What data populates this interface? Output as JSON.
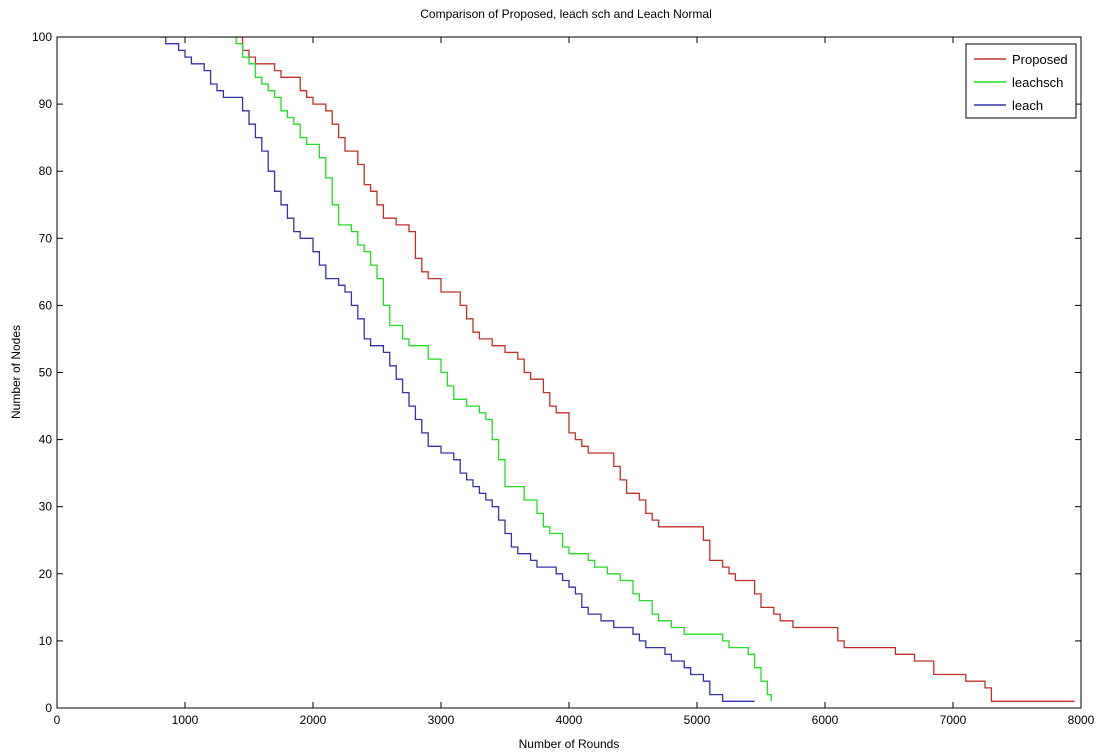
{
  "chart_data": {
    "type": "line",
    "title": "Comparison of Proposed, leach sch and Leach Normal",
    "xlabel": "Number of Rounds",
    "ylabel": "Number of Nodes",
    "xlim": [
      0,
      8000
    ],
    "ylim": [
      0,
      100
    ],
    "xticks": [
      0,
      1000,
      2000,
      3000,
      4000,
      5000,
      6000,
      7000,
      8000
    ],
    "yticks": [
      0,
      10,
      20,
      30,
      40,
      50,
      60,
      70,
      80,
      90,
      100
    ],
    "grid": false,
    "legend_position": "top-right",
    "series": [
      {
        "name": "Proposed",
        "color": "#c0302a",
        "step": true,
        "points": [
          [
            1400,
            100
          ],
          [
            1450,
            98
          ],
          [
            1500,
            97
          ],
          [
            1550,
            96
          ],
          [
            1700,
            95
          ],
          [
            1750,
            94
          ],
          [
            1900,
            92
          ],
          [
            1950,
            91
          ],
          [
            2000,
            90
          ],
          [
            2100,
            89
          ],
          [
            2150,
            87
          ],
          [
            2200,
            85
          ],
          [
            2250,
            83
          ],
          [
            2350,
            81
          ],
          [
            2400,
            78
          ],
          [
            2450,
            77
          ],
          [
            2500,
            75
          ],
          [
            2550,
            73
          ],
          [
            2650,
            72
          ],
          [
            2750,
            71
          ],
          [
            2800,
            67
          ],
          [
            2850,
            65
          ],
          [
            2900,
            64
          ],
          [
            3000,
            62
          ],
          [
            3150,
            60
          ],
          [
            3200,
            58
          ],
          [
            3250,
            56
          ],
          [
            3300,
            55
          ],
          [
            3400,
            54
          ],
          [
            3500,
            53
          ],
          [
            3600,
            52
          ],
          [
            3650,
            50
          ],
          [
            3700,
            49
          ],
          [
            3800,
            47
          ],
          [
            3850,
            45
          ],
          [
            3900,
            44
          ],
          [
            4000,
            41
          ],
          [
            4050,
            40
          ],
          [
            4100,
            39
          ],
          [
            4150,
            38
          ],
          [
            4350,
            36
          ],
          [
            4400,
            34
          ],
          [
            4450,
            32
          ],
          [
            4550,
            31
          ],
          [
            4600,
            29
          ],
          [
            4650,
            28
          ],
          [
            4700,
            27
          ],
          [
            5050,
            25
          ],
          [
            5100,
            22
          ],
          [
            5200,
            21
          ],
          [
            5250,
            20
          ],
          [
            5300,
            19
          ],
          [
            5450,
            17
          ],
          [
            5500,
            15
          ],
          [
            5600,
            14
          ],
          [
            5650,
            13
          ],
          [
            5750,
            12
          ],
          [
            6100,
            10
          ],
          [
            6150,
            9
          ],
          [
            6550,
            8
          ],
          [
            6700,
            7
          ],
          [
            6850,
            5
          ],
          [
            7100,
            4
          ],
          [
            7250,
            3
          ],
          [
            7300,
            1
          ],
          [
            7950,
            1
          ]
        ]
      },
      {
        "name": "leachsch",
        "color": "#22dd22",
        "step": true,
        "points": [
          [
            1200,
            100
          ],
          [
            1400,
            99
          ],
          [
            1450,
            97
          ],
          [
            1500,
            96
          ],
          [
            1550,
            94
          ],
          [
            1600,
            93
          ],
          [
            1650,
            92
          ],
          [
            1700,
            91
          ],
          [
            1750,
            89
          ],
          [
            1800,
            88
          ],
          [
            1850,
            87
          ],
          [
            1900,
            85
          ],
          [
            1950,
            84
          ],
          [
            2050,
            82
          ],
          [
            2100,
            79
          ],
          [
            2150,
            75
          ],
          [
            2200,
            72
          ],
          [
            2300,
            71
          ],
          [
            2350,
            69
          ],
          [
            2400,
            68
          ],
          [
            2450,
            66
          ],
          [
            2500,
            64
          ],
          [
            2550,
            60
          ],
          [
            2600,
            57
          ],
          [
            2700,
            55
          ],
          [
            2750,
            54
          ],
          [
            2900,
            52
          ],
          [
            3000,
            50
          ],
          [
            3050,
            48
          ],
          [
            3100,
            46
          ],
          [
            3200,
            45
          ],
          [
            3300,
            44
          ],
          [
            3350,
            43
          ],
          [
            3400,
            40
          ],
          [
            3450,
            37
          ],
          [
            3500,
            33
          ],
          [
            3650,
            31
          ],
          [
            3750,
            29
          ],
          [
            3800,
            27
          ],
          [
            3850,
            26
          ],
          [
            3950,
            24
          ],
          [
            4000,
            23
          ],
          [
            4150,
            22
          ],
          [
            4200,
            21
          ],
          [
            4300,
            20
          ],
          [
            4400,
            19
          ],
          [
            4500,
            17
          ],
          [
            4550,
            16
          ],
          [
            4650,
            14
          ],
          [
            4700,
            13
          ],
          [
            4800,
            12
          ],
          [
            4900,
            11
          ],
          [
            5200,
            10
          ],
          [
            5250,
            9
          ],
          [
            5400,
            8
          ],
          [
            5450,
            6
          ],
          [
            5500,
            4
          ],
          [
            5550,
            2
          ],
          [
            5580,
            1
          ]
        ]
      },
      {
        "name": "leach",
        "color": "#3333aa",
        "step": true,
        "points": [
          [
            800,
            100
          ],
          [
            850,
            99
          ],
          [
            950,
            98
          ],
          [
            1000,
            97
          ],
          [
            1050,
            96
          ],
          [
            1150,
            95
          ],
          [
            1200,
            93
          ],
          [
            1250,
            92
          ],
          [
            1300,
            91
          ],
          [
            1450,
            89
          ],
          [
            1500,
            87
          ],
          [
            1550,
            85
          ],
          [
            1600,
            83
          ],
          [
            1650,
            80
          ],
          [
            1700,
            77
          ],
          [
            1750,
            75
          ],
          [
            1800,
            73
          ],
          [
            1850,
            71
          ],
          [
            1900,
            70
          ],
          [
            2000,
            68
          ],
          [
            2050,
            66
          ],
          [
            2100,
            64
          ],
          [
            2200,
            63
          ],
          [
            2250,
            62
          ],
          [
            2300,
            60
          ],
          [
            2350,
            58
          ],
          [
            2400,
            55
          ],
          [
            2450,
            54
          ],
          [
            2550,
            53
          ],
          [
            2600,
            51
          ],
          [
            2650,
            49
          ],
          [
            2700,
            47
          ],
          [
            2750,
            45
          ],
          [
            2800,
            43
          ],
          [
            2850,
            41
          ],
          [
            2900,
            39
          ],
          [
            3000,
            38
          ],
          [
            3100,
            37
          ],
          [
            3150,
            35
          ],
          [
            3200,
            34
          ],
          [
            3250,
            33
          ],
          [
            3300,
            32
          ],
          [
            3350,
            31
          ],
          [
            3400,
            30
          ],
          [
            3450,
            28
          ],
          [
            3500,
            26
          ],
          [
            3550,
            24
          ],
          [
            3600,
            23
          ],
          [
            3700,
            22
          ],
          [
            3750,
            21
          ],
          [
            3900,
            20
          ],
          [
            3950,
            19
          ],
          [
            4000,
            18
          ],
          [
            4050,
            17
          ],
          [
            4100,
            15
          ],
          [
            4150,
            14
          ],
          [
            4250,
            13
          ],
          [
            4350,
            12
          ],
          [
            4500,
            11
          ],
          [
            4550,
            10
          ],
          [
            4600,
            9
          ],
          [
            4750,
            8
          ],
          [
            4800,
            7
          ],
          [
            4900,
            6
          ],
          [
            4950,
            5
          ],
          [
            5050,
            4
          ],
          [
            5100,
            2
          ],
          [
            5200,
            1
          ],
          [
            5450,
            1
          ]
        ]
      }
    ]
  }
}
